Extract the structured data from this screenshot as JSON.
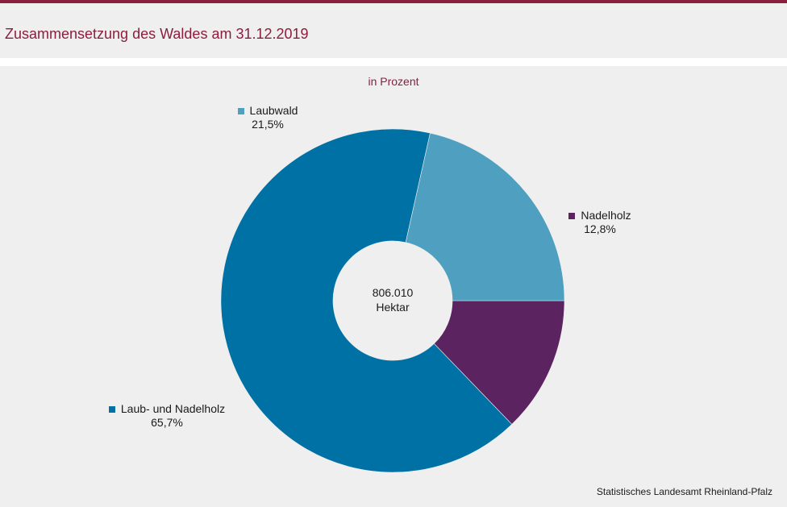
{
  "title": "Zusammensetzung des Waldes am 31.12.2019",
  "source": "Statistisches Landesamt Rheinland-Pfalz",
  "chart_data": {
    "type": "pie",
    "subtitle": "in Prozent",
    "center_label": {
      "value": "806.010",
      "unit": "Hektar"
    },
    "slices": [
      {
        "name": "Nadelholz",
        "value": 12.8,
        "label": "12,8%",
        "color": "#5b2360"
      },
      {
        "name": "Laub- und Nadelholz",
        "value": 65.7,
        "label": "65,7%",
        "color": "#0071a4"
      },
      {
        "name": "Laubwald",
        "value": 21.5,
        "label": "21,5%",
        "color": "#4e9fc0"
      }
    ]
  }
}
